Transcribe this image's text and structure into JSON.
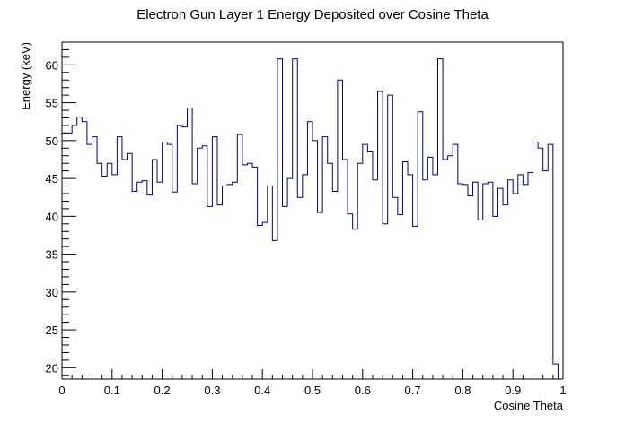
{
  "chart_data": {
    "type": "line",
    "title": "Electron Gun Layer 1 Energy Deposited over Cosine Theta",
    "xlabel": "Cosine Theta",
    "ylabel": "Energy (keV)",
    "xlim": [
      0,
      1
    ],
    "ylim": [
      18.5,
      63
    ],
    "x_ticks": [
      "0",
      "0.1",
      "0.2",
      "0.3",
      "0.4",
      "0.5",
      "0.6",
      "0.7",
      "0.8",
      "0.9",
      "1"
    ],
    "y_ticks": [
      "20",
      "25",
      "30",
      "35",
      "40",
      "45",
      "50",
      "55",
      "60"
    ],
    "line_color": "#000080",
    "bin_width": 0.01,
    "series": [
      {
        "values": [
          51.0,
          51.0,
          52.0,
          53.1,
          52.5,
          49.5,
          50.5,
          47.0,
          45.3,
          47.0,
          45.5,
          50.5,
          47.5,
          48.3,
          43.3,
          44.5,
          44.7,
          42.8,
          47.5,
          44.5,
          49.8,
          49.5,
          43.2,
          52.0,
          51.8,
          54.3,
          44.3,
          49.0,
          49.3,
          41.3,
          50.5,
          41.5,
          44.0,
          44.2,
          44.5,
          50.8,
          46.8,
          47.0,
          46.5,
          38.8,
          39.2,
          44.0,
          36.8,
          60.8,
          41.3,
          45.0,
          60.8,
          42.5,
          45.5,
          52.5,
          50.0,
          40.5,
          50.5,
          47.0,
          43.3,
          58.0,
          47.5,
          40.3,
          38.3,
          47.0,
          49.5,
          48.5,
          44.8,
          56.5,
          39.0,
          56.0,
          42.5,
          40.2,
          47.2,
          45.5,
          38.7,
          53.8,
          44.8,
          47.8,
          45.5,
          60.8,
          47.5,
          48.0,
          49.5,
          44.3,
          44.2,
          42.7,
          44.5,
          39.5,
          44.3,
          44.5,
          40.0,
          43.7,
          41.5,
          44.8,
          43.0,
          45.5,
          44.2,
          45.8,
          49.8,
          49.0,
          46.0,
          49.5,
          20.5
        ]
      }
    ]
  }
}
